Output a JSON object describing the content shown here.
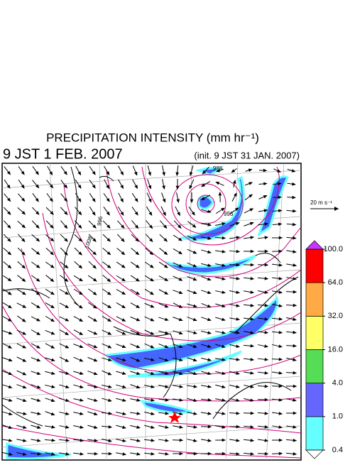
{
  "title": "PRECIPITATION INTENSITY (mm hr⁻¹)",
  "valid_time": "9 JST 1 FEB. 2007",
  "init_time": "(init. 9 JST 31 JAN. 2007)",
  "wind_scale_label": "20 m s⁻¹",
  "isobar_labels": [
    "1008",
    "996",
    "988",
    "996"
  ],
  "colorbar": {
    "ticks": [
      0.4,
      {
        "value": 1,
        "label": "1.0"
      },
      {
        "value": 4,
        "label": "4.0"
      },
      {
        "value": 16,
        "label": "16.0"
      },
      {
        "value": 32,
        "label": "32.0"
      },
      {
        "value": 64,
        "label": "64.0"
      },
      {
        "value": 100,
        "label": "100.0"
      }
    ],
    "colors": [
      "#66ffff",
      "#6666ff",
      "#55dd55",
      "#ffff66",
      "#ffaa44",
      "#ff0000"
    ],
    "under_color": "#ffffff",
    "over_color": "#cc33ff"
  }
}
